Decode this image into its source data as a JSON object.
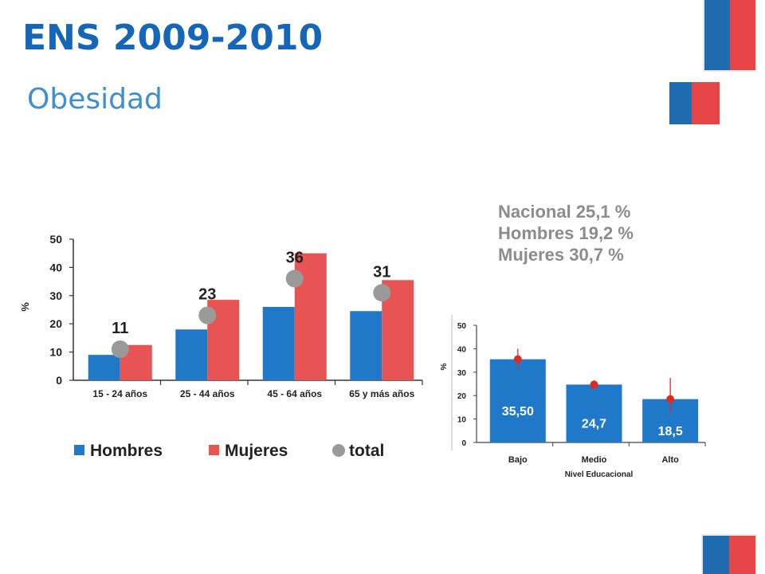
{
  "page": {
    "title": "ENS 2009-2010",
    "subtitle": "Obesidad"
  },
  "colors": {
    "hombres": "#1f78c8",
    "mujeres": "#e85454",
    "total": "#9a9a9a",
    "ci_marker": "#e02a20",
    "flag_blue": "#1f6bb0",
    "flag_red": "#e64646"
  },
  "chart_data": [
    {
      "type": "bar",
      "title": "",
      "xlabel": "",
      "ylabel": "%",
      "ylim": [
        0,
        50
      ],
      "yticks": [
        0,
        10,
        20,
        30,
        40,
        50
      ],
      "categories": [
        "15 - 24 años",
        "25 - 44 años",
        "45 - 64 años",
        "65 y más años"
      ],
      "series": [
        {
          "name": "Hombres",
          "type": "bar",
          "values": [
            9,
            18,
            26,
            24.5
          ]
        },
        {
          "name": "Mujeres",
          "type": "bar",
          "values": [
            12.5,
            28.5,
            45,
            35.5
          ]
        },
        {
          "name": "total",
          "type": "point",
          "values": [
            11,
            23,
            36,
            31
          ]
        }
      ],
      "data_labels": [
        "11",
        "23",
        "36",
        "31"
      ],
      "legend": {
        "position": "bottom",
        "entries": [
          "Hombres",
          "Mujeres",
          "total"
        ]
      },
      "grid": false
    },
    {
      "type": "bar",
      "title": "",
      "xlabel": "Nivel Educacional",
      "ylabel": "%",
      "ylim": [
        0,
        50
      ],
      "yticks": [
        0,
        10,
        20,
        30,
        40,
        50
      ],
      "categories": [
        "Bajo",
        "Medio",
        "Alto"
      ],
      "values": [
        35.5,
        24.7,
        18.5
      ],
      "value_labels": [
        "35,50",
        "24,7",
        "18,5"
      ],
      "error_bars": [
        [
          31.5,
          40
        ],
        [
          22.5,
          26.5
        ],
        [
          13,
          27.5
        ]
      ],
      "grid": false,
      "annotations": [
        "Nacional 25,1  %",
        "Hombres 19,2  %",
        "Mujeres 30,7  %"
      ]
    }
  ]
}
